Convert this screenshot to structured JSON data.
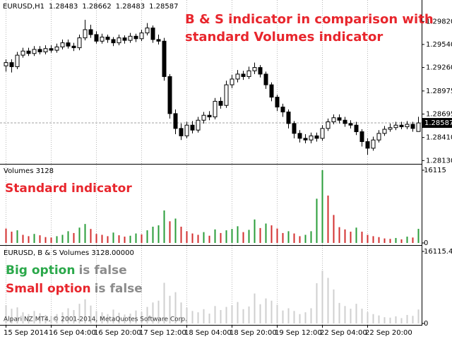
{
  "chart_data": [
    {
      "type": "candlestick",
      "symbol": "EURUSD,H1",
      "title_lines": [
        "B & S indicator in comparison with",
        "standard Volumes indicator"
      ],
      "title_color": "#e8262d",
      "categories": [
        "15 Sep 2014",
        null,
        null,
        null,
        null,
        null,
        null,
        null,
        "16 Sep 04:00",
        null,
        null,
        null,
        null,
        null,
        null,
        null,
        "16 Sep 20:00",
        null,
        null,
        null,
        null,
        null,
        null,
        null,
        "17 Sep 12:00",
        null,
        null,
        null,
        null,
        null,
        null,
        null,
        "18 Sep 04:00",
        null,
        null,
        null,
        null,
        null,
        null,
        null,
        "18 Sep 20:00",
        null,
        null,
        null,
        null,
        null,
        null,
        null,
        "19 Sep 12:00",
        null,
        null,
        null,
        null,
        null,
        null,
        null,
        "22 Sep 04:00",
        null,
        null,
        null,
        null,
        null,
        null,
        null,
        "22 Sep 20:00",
        null,
        null,
        null,
        null,
        null,
        null,
        null,
        null,
        null
      ],
      "open": [
        1.2928,
        1.2932,
        1.2927,
        1.2941,
        1.2946,
        1.2943,
        1.2948,
        1.2945,
        1.2949,
        1.2947,
        1.2951,
        1.2956,
        1.2952,
        1.295,
        1.2962,
        1.2972,
        1.2966,
        1.2958,
        1.2963,
        1.296,
        1.2956,
        1.2962,
        1.2959,
        1.2964,
        1.2961,
        1.2968,
        1.2974,
        1.296,
        1.2958,
        1.2915,
        1.287,
        1.2852,
        1.2843,
        1.2856,
        1.285,
        1.2862,
        1.2868,
        1.2866,
        1.2885,
        1.288,
        1.2905,
        1.2912,
        1.2918,
        1.2915,
        1.2922,
        1.2926,
        1.2918,
        1.2905,
        1.289,
        1.2878,
        1.2872,
        1.2858,
        1.2846,
        1.284,
        1.2838,
        1.2843,
        1.284,
        1.2852,
        1.286,
        1.2865,
        1.2862,
        1.2858,
        1.2856,
        1.2848,
        1.2836,
        1.2828,
        1.2838,
        1.2846,
        1.2851,
        1.2853,
        1.2856,
        1.2854,
        1.2857,
        1.28483
      ],
      "high": [
        1.2936,
        1.2936,
        1.2945,
        1.295,
        1.295,
        1.2952,
        1.2952,
        1.2953,
        1.2953,
        1.2955,
        1.296,
        1.296,
        1.2956,
        1.2966,
        1.2984,
        1.2978,
        1.297,
        1.2967,
        1.2966,
        1.2963,
        1.2966,
        1.2965,
        1.2968,
        1.2967,
        1.2972,
        1.298,
        1.2977,
        1.2966,
        1.2962,
        1.2918,
        1.2875,
        1.2858,
        1.286,
        1.2861,
        1.2866,
        1.2872,
        1.2873,
        1.2889,
        1.289,
        1.291,
        1.2917,
        1.2923,
        1.2922,
        1.2927,
        1.2932,
        1.2929,
        1.2921,
        1.2908,
        1.2893,
        1.2882,
        1.2875,
        1.2861,
        1.285,
        1.2845,
        1.2847,
        1.2847,
        1.2856,
        1.2864,
        1.2869,
        1.2869,
        1.2866,
        1.2862,
        1.286,
        1.2851,
        1.284,
        1.2842,
        1.285,
        1.2855,
        1.2858,
        1.286,
        1.286,
        1.2861,
        1.286,
        1.28662
      ],
      "low": [
        1.2921,
        1.292,
        1.2924,
        1.2938,
        1.294,
        1.294,
        1.2942,
        1.2942,
        1.2944,
        1.2944,
        1.2948,
        1.2949,
        1.2946,
        1.2947,
        1.2959,
        1.2962,
        1.2955,
        1.2955,
        1.2956,
        1.2952,
        1.2953,
        1.2955,
        1.2956,
        1.2957,
        1.2958,
        1.2965,
        1.2956,
        1.2954,
        1.291,
        1.2864,
        1.2845,
        1.2838,
        1.284,
        1.2846,
        1.2847,
        1.2858,
        1.2862,
        1.2863,
        1.2876,
        1.2877,
        1.2901,
        1.2908,
        1.2911,
        1.2912,
        1.2918,
        1.2914,
        1.29,
        1.2885,
        1.2873,
        1.2866,
        1.2852,
        1.284,
        1.2835,
        1.2834,
        1.2834,
        1.2836,
        1.2837,
        1.2849,
        1.2857,
        1.2858,
        1.2854,
        1.2852,
        1.2844,
        1.283,
        1.282,
        1.2825,
        1.2835,
        1.2843,
        1.2848,
        1.285,
        1.2851,
        1.2851,
        1.2848,
        1.28483
      ],
      "close": [
        1.2932,
        1.2927,
        1.2941,
        1.2946,
        1.2943,
        1.2948,
        1.2945,
        1.2949,
        1.2947,
        1.2951,
        1.2956,
        1.2952,
        1.295,
        1.2962,
        1.2972,
        1.2966,
        1.2958,
        1.2963,
        1.296,
        1.2956,
        1.2962,
        1.2959,
        1.2964,
        1.2961,
        1.2968,
        1.2974,
        1.296,
        1.2958,
        1.2915,
        1.287,
        1.2852,
        1.2843,
        1.2856,
        1.285,
        1.2862,
        1.2868,
        1.2866,
        1.2885,
        1.288,
        1.2905,
        1.2912,
        1.2918,
        1.2915,
        1.2922,
        1.2926,
        1.2918,
        1.2905,
        1.289,
        1.2878,
        1.2872,
        1.2858,
        1.2846,
        1.284,
        1.2838,
        1.2843,
        1.284,
        1.2852,
        1.286,
        1.2865,
        1.2862,
        1.2858,
        1.2856,
        1.2848,
        1.2836,
        1.2828,
        1.2838,
        1.2846,
        1.2851,
        1.2853,
        1.2856,
        1.2854,
        1.2857,
        1.2852,
        1.28587
      ],
      "up_color": "#ffffff",
      "down_color": "#000000",
      "wick_color": "#000000",
      "ylim": [
        1.2809,
        1.3008
      ],
      "yticks": [
        {
          "value": 1.2813,
          "label": "1.28130"
        },
        {
          "value": 1.2841,
          "label": "1.28410"
        },
        1.28695,
        1.28975,
        {
          "value": 1.2926,
          "label": "1.29260"
        },
        {
          "value": 1.2954,
          "label": "1.29540"
        },
        {
          "value": 1.2982,
          "label": "1.29820"
        }
      ],
      "grid": true
    },
    {
      "type": "bar",
      "title": "Volumes 3128",
      "annotation": "Standard indicator",
      "annotation_color": "#e8262d",
      "up_color": "#2a9d3a",
      "down_color": "#d32f2f",
      "values": [
        3200,
        2500,
        2800,
        1800,
        1500,
        2000,
        1700,
        1300,
        1200,
        1500,
        1800,
        2600,
        2200,
        3400,
        4200,
        3100,
        2000,
        1800,
        1500,
        2300,
        1700,
        1400,
        1600,
        2100,
        1900,
        2800,
        3600,
        3900,
        7200,
        4800,
        5400,
        3600,
        2600,
        2100,
        1800,
        2400,
        1600,
        3000,
        2200,
        2800,
        3100,
        3700,
        2400,
        2900,
        5200,
        3300,
        4300,
        3900,
        3200,
        2200,
        2600,
        2100,
        1500,
        1800,
        2600,
        9800,
        16115,
        10500,
        6200,
        3500,
        3000,
        2500,
        3400,
        2500,
        1800,
        1500,
        1300,
        1000,
        900,
        1100,
        800,
        1400,
        1200,
        3128
      ],
      "ylim": [
        0,
        16115
      ],
      "yticks": [
        0,
        16115
      ]
    },
    {
      "type": "bar",
      "title": "EURUSD, B & S Volumes 3128.00000",
      "color": "#cfcfcf",
      "notes": [
        {
          "label": "Big option",
          "state": "is false",
          "color": "#2aa84a"
        },
        {
          "label": "Small option",
          "state": "is false",
          "color": "#e8262d"
        }
      ],
      "state_color": "#8c8c8c",
      "footer": "Alpari NZ MT4, © 2001-2014, MetaQuotes Software Corp.",
      "values": [
        4100,
        3300,
        3600,
        2500,
        2100,
        2800,
        2300,
        1900,
        1700,
        2100,
        2500,
        3400,
        3000,
        4400,
        5400,
        4000,
        2800,
        2500,
        2100,
        3100,
        2400,
        2000,
        2200,
        2900,
        2600,
        3700,
        4700,
        5100,
        9100,
        6200,
        7000,
        4700,
        3500,
        2800,
        2500,
        3200,
        2200,
        3900,
        3000,
        3700,
        4100,
        4800,
        3200,
        3800,
        6700,
        4300,
        5600,
        5100,
        4200,
        2900,
        3400,
        2800,
        2100,
        2500,
        3400,
        9000,
        11800,
        10200,
        7600,
        4600,
        3900,
        3300,
        4400,
        3300,
        2500,
        2100,
        1800,
        1400,
        1300,
        1600,
        1200,
        1900,
        1700,
        3128
      ],
      "ylim": [
        0,
        16115.4
      ],
      "yticks": [
        0,
        16115.4
      ]
    }
  ]
}
